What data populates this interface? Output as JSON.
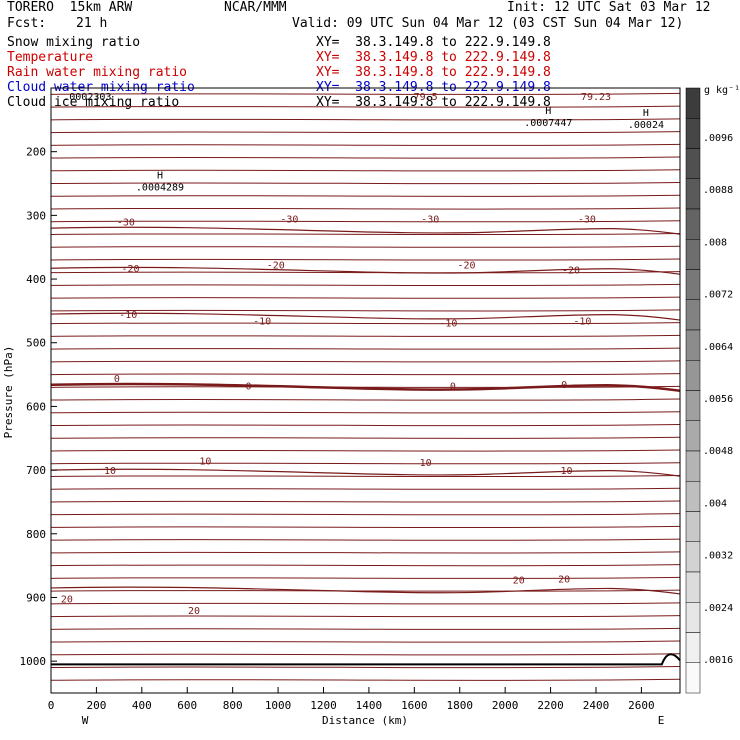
{
  "header": {
    "model": "TORERO  15km ARW",
    "center": "NCAR/MMM",
    "init": "Init: 12 UTC Sat 03 Mar 12",
    "fcst_label": "Fcst:",
    "fcst_value": "21 h",
    "valid": "Valid: 09 UTC Sun 04 Mar 12 (03 CST Sun 04 Mar 12)"
  },
  "fields": [
    {
      "name": "Snow mixing ratio",
      "xy": "XY=  38.3.149.8 to 222.9.149.8",
      "color": "#000000"
    },
    {
      "name": "Temperature",
      "xy": "XY=  38.3.149.8 to 222.9.149.8",
      "color": "#cc0000"
    },
    {
      "name": "Rain water mixing ratio",
      "xy": "XY=  38.3.149.8 to 222.9.149.8",
      "color": "#cc0000"
    },
    {
      "name": "Cloud water mixing ratio",
      "xy": "XY=  38.3.149.8 to 222.9.149.8",
      "color": "#0000cc"
    },
    {
      "name": "Cloud ice mixing ratio",
      "xy": "XY=  38.3.149.8 to 222.9.149.8",
      "color": "#000000"
    }
  ],
  "chart_data": {
    "type": "contour",
    "xlabel": "Distance (km)",
    "ylabel": "Pressure (hPa)",
    "xlim": [
      0,
      2770
    ],
    "ylim": [
      1050,
      100
    ],
    "x_ticks": [
      0,
      200,
      400,
      600,
      800,
      1000,
      1200,
      1400,
      1600,
      1800,
      2000,
      2200,
      2400,
      2600
    ],
    "y_ticks": [
      200,
      300,
      400,
      500,
      600,
      700,
      800,
      900,
      1000
    ],
    "x_end_labels": {
      "left": "W",
      "right": "E"
    },
    "colorbar": {
      "unit": "g kg⁻¹",
      "tick_labels": [
        ".0096",
        ".0088",
        ".008",
        ".0072",
        ".0064",
        ".0056",
        ".0048",
        ".004",
        ".0032",
        ".0024",
        ".0016"
      ],
      "min": 0.0012,
      "max": 0.01
    },
    "temperature_contours": [
      {
        "value": -30,
        "p": 320,
        "labels": [
          [
            330,
            310
          ],
          [
            1050,
            305
          ],
          [
            1670,
            305
          ],
          [
            2360,
            305
          ]
        ]
      },
      {
        "value": -20,
        "p": 383,
        "labels": [
          [
            350,
            383
          ],
          [
            990,
            377
          ],
          [
            1830,
            377
          ],
          [
            2290,
            385
          ]
        ]
      },
      {
        "value": -10,
        "p": 455,
        "labels": [
          [
            340,
            455
          ],
          [
            930,
            465
          ],
          [
            1750,
            468
          ],
          [
            2340,
            465
          ]
        ]
      },
      {
        "value": 0,
        "p": 566,
        "labels": [
          [
            290,
            555
          ],
          [
            870,
            567
          ],
          [
            1770,
            567
          ],
          [
            2260,
            565
          ]
        ]
      },
      {
        "value": 10,
        "p": 700,
        "labels": [
          [
            260,
            700
          ],
          [
            680,
            685
          ],
          [
            1650,
            687
          ],
          [
            2270,
            700
          ]
        ]
      },
      {
        "value": 20,
        "p": 885,
        "labels": [
          [
            70,
            902
          ],
          [
            630,
            920
          ],
          [
            2060,
            872
          ],
          [
            2260,
            870
          ]
        ]
      }
    ],
    "maxima": [
      {
        "symbol": "H",
        "x": 480,
        "p": 248,
        "value": ".0004289"
      },
      {
        "symbol": "H",
        "x": 2190,
        "p": 147,
        "value": ".0007447"
      },
      {
        "symbol": "H",
        "x": 2620,
        "p": 150,
        "value": ".00024"
      }
    ],
    "overlap_top_values": [
      ".0002303",
      "79.5",
      "79.23"
    ]
  }
}
